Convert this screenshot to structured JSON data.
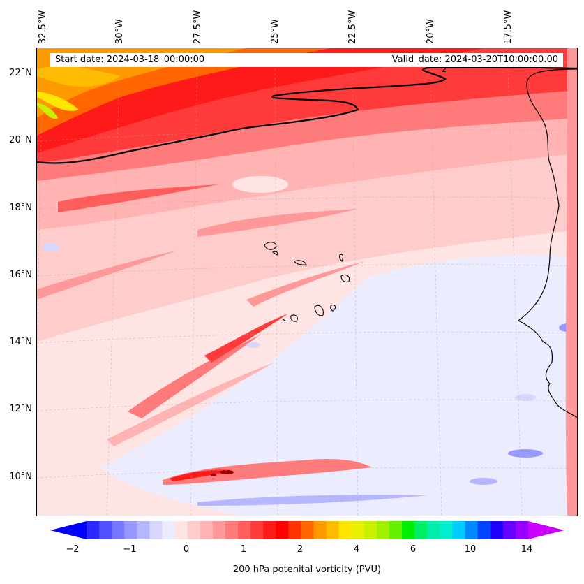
{
  "map": {
    "title_start": "Start date: 2024-03-18_00:00:00",
    "title_valid": "Valid_date: 2024-03-20T10:00:00.00",
    "lon_labels": [
      "32.5°W",
      "30°W",
      "27.5°W",
      "25°W",
      "22.5°W",
      "20°W",
      "17.5°W"
    ],
    "lat_labels": [
      "22°N",
      "20°N",
      "18°N",
      "16°N",
      "14°N",
      "12°N",
      "10°N"
    ],
    "contour_label": "2"
  },
  "colorbar": {
    "label": "200 hPa potenital vorticity (PVU)",
    "ticks": [
      "−2",
      "−1",
      "0",
      "1",
      "2",
      "4",
      "6",
      "10",
      "14"
    ],
    "colors": [
      "#0000ff",
      "#2a2aff",
      "#5050ff",
      "#7676ff",
      "#9898ff",
      "#b6b6ff",
      "#d6d6ff",
      "#ececff",
      "#ffe4e4",
      "#ffcccc",
      "#ffb3b3",
      "#ff9999",
      "#ff7a7a",
      "#ff5c5c",
      "#ff3a3a",
      "#ff1a1a",
      "#ff0000",
      "#ff3300",
      "#ff6600",
      "#ff9900",
      "#ffbb00",
      "#ffe600",
      "#e6f000",
      "#c8f000",
      "#a0f000",
      "#66f000",
      "#00ee00",
      "#00ee66",
      "#00eeaa",
      "#00eecc",
      "#00ccff",
      "#0088ff",
      "#0044ff",
      "#2200ff",
      "#6600ff",
      "#9900ff",
      "#cc00ff"
    ]
  }
}
